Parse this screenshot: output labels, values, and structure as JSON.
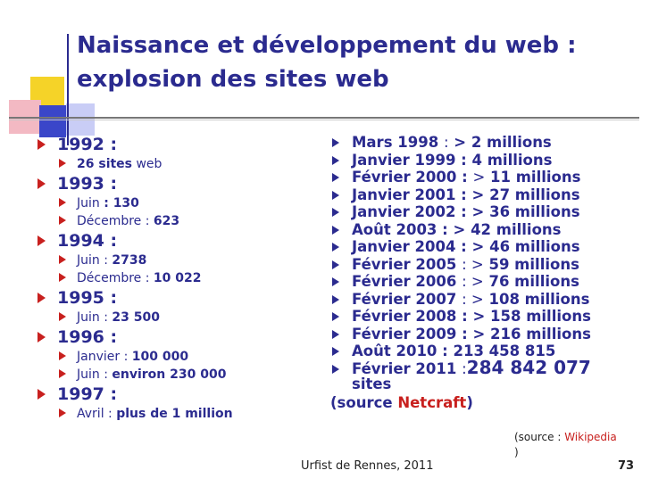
{
  "title": {
    "line1": "Naissance et développement du web :",
    "line2": "explosion des sites web"
  },
  "left": [
    {
      "year": "1992 :",
      "items": [
        {
          "pre": "26 sites",
          "post": " web",
          "pre_bold": true
        }
      ]
    },
    {
      "year": "1993 :",
      "items": [
        {
          "pre": "Juin ",
          "post": ": 130"
        },
        {
          "pre": "Décembre : ",
          "post": "623"
        }
      ]
    },
    {
      "year": "1994 :",
      "items": [
        {
          "pre": "Juin : ",
          "post": "2738"
        },
        {
          "pre": "Décembre : ",
          "post": "10 022"
        }
      ]
    },
    {
      "year": "1995 :",
      "items": [
        {
          "pre": "Juin : ",
          "post": "23 500"
        }
      ]
    },
    {
      "year": "1996 :",
      "items": [
        {
          "pre": "Janvier : ",
          "post": "100 000"
        },
        {
          "pre": "Juin : ",
          "post": "environ 230 000"
        }
      ]
    },
    {
      "year": "1997 :",
      "items": [
        {
          "pre": "Avril : ",
          "post": "plus de 1 million"
        }
      ]
    }
  ],
  "right": [
    {
      "date": "Mars 1998 ",
      "sep": ":",
      "value": " > 2 millions"
    },
    {
      "date": "Janvier 1999 : ",
      "sep": "",
      "value": "4 millions"
    },
    {
      "date": "Février 2000 : ",
      "sep": ">",
      "value": " 11 millions"
    },
    {
      "date": "Janvier 2001 : ",
      "sep": "",
      "value": "> 27 millions"
    },
    {
      "date": "Janvier 2002 : ",
      "sep": "",
      "value": "> 36 millions"
    },
    {
      "date": "Août 2003 : ",
      "sep": "",
      "value": "> 42 millions"
    },
    {
      "date": "Janvier 2004 : ",
      "sep": "",
      "value": "> 46 millions"
    },
    {
      "date": "Février 2005 ",
      "sep": ": >",
      "value": " 59 millions"
    },
    {
      "date": "Février 2006 ",
      "sep": ": >",
      "value": " 76 millions"
    },
    {
      "date": "Février 2007 ",
      "sep": ": >",
      "value": " 108 millions"
    },
    {
      "date": "Février 2008 : ",
      "sep": "",
      "value": "> 158 millions"
    },
    {
      "date": "Février 2009 : ",
      "sep": "",
      "value": "> 216 millions"
    },
    {
      "date": "Août 2010 : ",
      "sep": "",
      "value": "213 458 815"
    }
  ],
  "last": {
    "date": "Février 2011 ",
    "sep": ":",
    "value": "284 842 077",
    "cont": "sites"
  },
  "source": {
    "open": "(source ",
    "name": "Netcraft",
    "close": ")"
  },
  "wiki": {
    "prefix": "(source : ",
    "name": "Wikipedia",
    "close": ")"
  },
  "footer": {
    "text": "Urfist de Rennes, 2011",
    "page": "73"
  },
  "colors": {
    "accent": "#c8201e",
    "text": "#2b2b8f"
  }
}
